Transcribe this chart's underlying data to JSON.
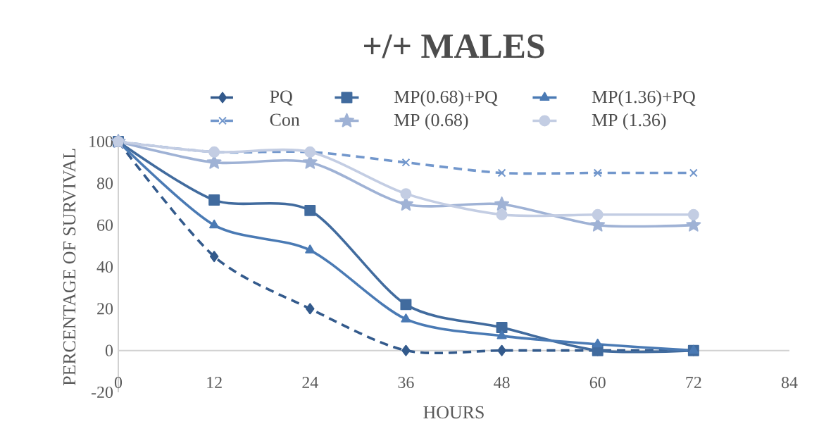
{
  "chart_data": {
    "type": "line",
    "title": "+/+ MALES",
    "xlabel": "HOURS",
    "ylabel": "PERCENTAGE OF SURVIVAL",
    "x": [
      0,
      12,
      24,
      36,
      48,
      60,
      72
    ],
    "xlim": [
      0,
      84
    ],
    "xticks": [
      0,
      12,
      24,
      36,
      48,
      60,
      72,
      84
    ],
    "ylim": [
      -20,
      100
    ],
    "yticks": [
      -20,
      0,
      20,
      40,
      60,
      80,
      100
    ],
    "legend": "top",
    "series": [
      {
        "name": "PQ",
        "color": "#335a8c",
        "marker": "diamond",
        "line_style": "dashed",
        "values": [
          100,
          45,
          20,
          0,
          0,
          0,
          0
        ]
      },
      {
        "name": "MP(0.68)+PQ",
        "color": "#416b9e",
        "marker": "square",
        "line_style": "solid",
        "values": [
          100,
          72,
          67,
          22,
          11,
          0,
          0
        ]
      },
      {
        "name": "MP(1.36)+PQ",
        "color": "#4a7ab4",
        "marker": "triangle",
        "line_style": "solid",
        "values": [
          100,
          60,
          48,
          15,
          7,
          3,
          0
        ]
      },
      {
        "name": "Con",
        "color": "#7297cc",
        "marker": "cross",
        "line_style": "dashed",
        "values": [
          100,
          95,
          95,
          90,
          85,
          85,
          85
        ]
      },
      {
        "name": "MP (0.68)",
        "color": "#9fb2d5",
        "marker": "star",
        "line_style": "solid",
        "values": [
          100,
          90,
          90,
          70,
          70,
          60,
          60
        ]
      },
      {
        "name": "MP (1.36)",
        "color": "#c3cde3",
        "marker": "circle",
        "line_style": "solid",
        "values": [
          100,
          95,
          95,
          75,
          65,
          65,
          65
        ]
      }
    ]
  }
}
